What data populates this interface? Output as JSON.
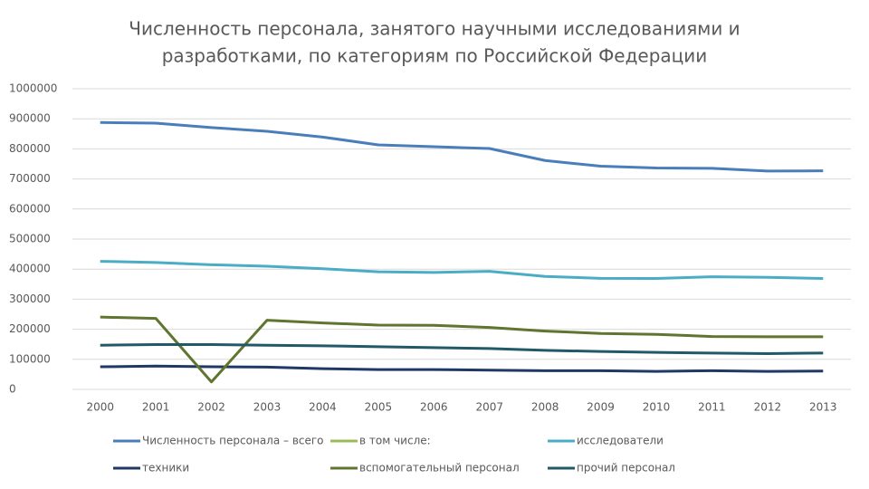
{
  "chart_data": {
    "type": "line",
    "title": [
      "Численность персонала, занятого научными исследованиями и",
      "разработками, по категориям по Российской Федерации"
    ],
    "categories": [
      "2000",
      "2001",
      "2002",
      "2003",
      "2004",
      "2005",
      "2006",
      "2007",
      "2008",
      "2009",
      "2010",
      "2011",
      "2012",
      "2013"
    ],
    "ylim": [
      0,
      1000000
    ],
    "yticks": [
      0,
      100000,
      200000,
      300000,
      400000,
      500000,
      600000,
      700000,
      800000,
      900000,
      1000000
    ],
    "grid": true,
    "series": [
      {
        "name": "Численность персонала – всего",
        "color": "#4a7ebb",
        "values": [
          887729,
          885568,
          870878,
          858470,
          839338,
          813207,
          807066,
          801135,
          761252,
          742433,
          736540,
          735273,
          726318,
          727029
        ]
      },
      {
        "name": "в том числе:",
        "color": "#9bbb59",
        "values": [
          null,
          null,
          null,
          null,
          null,
          null,
          null,
          null,
          null,
          null,
          null,
          null,
          null,
          null
        ]
      },
      {
        "name": "исследователи",
        "color": "#4bacc6",
        "values": [
          425954,
          422177,
          414676,
          409775,
          401425,
          391121,
          388939,
          392849,
          375804,
          369237,
          368915,
          374746,
          372620,
          369015
        ]
      },
      {
        "name": "техники",
        "color": "#1f3864",
        "values": [
          75184,
          77568,
          75400,
          74000,
          69000,
          66000,
          66000,
          64000,
          62000,
          62000,
          60000,
          62000,
          60000,
          61000
        ]
      },
      {
        "name": "вспомогательный персонал",
        "color": "#5f7530",
        "values": [
          240506,
          236000,
          25000,
          230000,
          221000,
          214000,
          213000,
          206000,
          194000,
          186000,
          183000,
          176000,
          175000,
          175000
        ]
      },
      {
        "name": "прочий персонал",
        "color": "#215968",
        "values": [
          147000,
          149000,
          149000,
          147000,
          145000,
          142000,
          139000,
          136000,
          130000,
          126000,
          123000,
          121000,
          119000,
          121000
        ]
      }
    ]
  }
}
